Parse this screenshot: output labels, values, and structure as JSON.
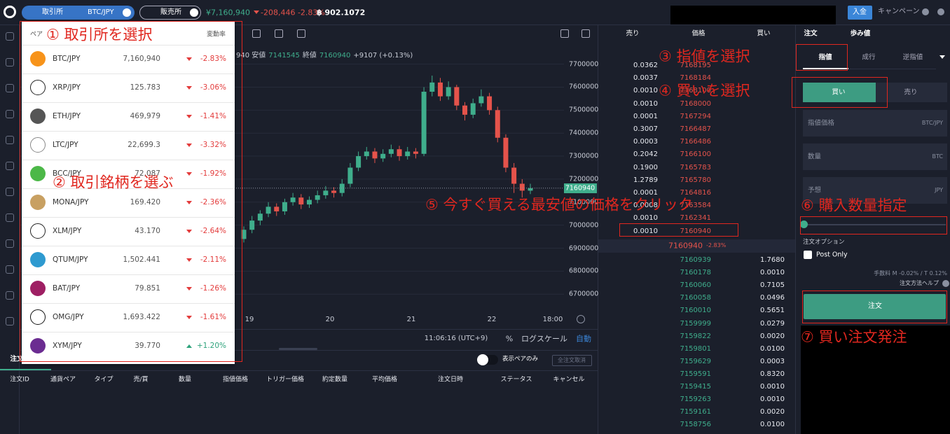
{
  "header": {
    "exchange_tab": "取引所",
    "pair": "BTC/JPY",
    "sales_tab": "販売所",
    "price": "¥7,160,940",
    "change": "-208,446 -2.83%",
    "balance": "฿ 902.1072",
    "deposit": "入金",
    "campaign": "キャンペーン"
  },
  "pair_menu": {
    "columns": [
      "ペア",
      "変動率"
    ],
    "rows": [
      {
        "pair": "BTC/JPY",
        "price": "7,160,940",
        "change": "-2.83%"
      },
      {
        "pair": "XRP/JPY",
        "price": "125.783",
        "change": "-3.06%"
      },
      {
        "pair": "ETH/JPY",
        "price": "469,979",
        "change": "-1.41%"
      },
      {
        "pair": "LTC/JPY",
        "price": "22,699.3",
        "change": "-3.32%"
      },
      {
        "pair": "BCC/JPY",
        "price": "72,087",
        "change": "-1.92%"
      },
      {
        "pair": "MONA/JPY",
        "price": "169.420",
        "change": "-2.36%"
      },
      {
        "pair": "XLM/JPY",
        "price": "43.170",
        "change": "-2.64%"
      },
      {
        "pair": "QTUM/JPY",
        "price": "1,502.441",
        "change": "-2.11%"
      },
      {
        "pair": "BAT/JPY",
        "price": "79.851",
        "change": "-1.26%"
      },
      {
        "pair": "OMG/JPY",
        "price": "1,693.422",
        "change": "-1.61%"
      },
      {
        "pair": "XYM/JPY",
        "price": "39.770",
        "change": "+1.20%"
      }
    ]
  },
  "annotations": [
    "① 取引所を選択",
    "② 取引銘柄を選ぶ",
    "③ 指値を選択",
    "④ 買いを選択",
    "⑤ 今すぐ買える最安値の価格をクリック",
    "⑥ 購入数量指定",
    "⑦ 買い注文発注"
  ],
  "chart": {
    "type": "candlestick",
    "info": [
      "940 安値",
      "7141545",
      "終値",
      "7160940",
      "+9107 (+0.13%)"
    ],
    "ylim": [
      6640000,
      7790000
    ],
    "yticks": [
      6700000,
      6800000,
      6900000,
      7000000,
      7100000,
      7200000,
      7300000,
      7400000,
      7500000,
      7600000,
      7700000
    ],
    "last_price": 7160940,
    "x_labels": [
      "19",
      "20",
      "21",
      "22",
      "18:00"
    ],
    "time": "11:06:16 (UTC+9)",
    "percent": "%",
    "log_scale": "ログスケール",
    "auto": "自動",
    "candles": [
      {
        "o": 6940000,
        "h": 6995000,
        "l": 6925000,
        "c": 6980000
      },
      {
        "o": 6980000,
        "h": 7040000,
        "l": 6965000,
        "c": 7020000
      },
      {
        "o": 7020000,
        "h": 7065000,
        "l": 7000000,
        "c": 7050000
      },
      {
        "o": 7050000,
        "h": 7100000,
        "l": 7035000,
        "c": 7080000
      },
      {
        "o": 7080000,
        "h": 7095000,
        "l": 7040000,
        "c": 7060000
      },
      {
        "o": 7060000,
        "h": 7115000,
        "l": 7045000,
        "c": 7100000
      },
      {
        "o": 7100000,
        "h": 7140000,
        "l": 7085000,
        "c": 7120000
      },
      {
        "o": 7120000,
        "h": 7135000,
        "l": 7070000,
        "c": 7090000
      },
      {
        "o": 7090000,
        "h": 7125000,
        "l": 7075000,
        "c": 7110000
      },
      {
        "o": 7110000,
        "h": 7150000,
        "l": 7095000,
        "c": 7130000
      },
      {
        "o": 7130000,
        "h": 7170000,
        "l": 7115000,
        "c": 7150000
      },
      {
        "o": 7150000,
        "h": 7165000,
        "l": 7120000,
        "c": 7140000
      },
      {
        "o": 7140000,
        "h": 7200000,
        "l": 7125000,
        "c": 7180000
      },
      {
        "o": 7180000,
        "h": 7270000,
        "l": 7165000,
        "c": 7250000
      },
      {
        "o": 7250000,
        "h": 7320000,
        "l": 7235000,
        "c": 7300000
      },
      {
        "o": 7300000,
        "h": 7340000,
        "l": 7285000,
        "c": 7320000
      },
      {
        "o": 7320000,
        "h": 7335000,
        "l": 7270000,
        "c": 7290000
      },
      {
        "o": 7290000,
        "h": 7330000,
        "l": 7275000,
        "c": 7310000
      },
      {
        "o": 7310000,
        "h": 7350000,
        "l": 7295000,
        "c": 7330000
      },
      {
        "o": 7330000,
        "h": 7345000,
        "l": 7280000,
        "c": 7300000
      },
      {
        "o": 7300000,
        "h": 7340000,
        "l": 7285000,
        "c": 7320000
      },
      {
        "o": 7320000,
        "h": 7335000,
        "l": 7290000,
        "c": 7310000
      },
      {
        "o": 7310000,
        "h": 7600000,
        "l": 7300000,
        "c": 7580000
      },
      {
        "o": 7580000,
        "h": 7650000,
        "l": 7560000,
        "c": 7620000
      },
      {
        "o": 7620000,
        "h": 7640000,
        "l": 7540000,
        "c": 7560000
      },
      {
        "o": 7560000,
        "h": 7625000,
        "l": 7545000,
        "c": 7600000
      },
      {
        "o": 7600000,
        "h": 7610000,
        "l": 7500000,
        "c": 7520000
      },
      {
        "o": 7520000,
        "h": 7535000,
        "l": 7455000,
        "c": 7480000
      },
      {
        "o": 7480000,
        "h": 7550000,
        "l": 7465000,
        "c": 7530000
      },
      {
        "o": 7530000,
        "h": 7590000,
        "l": 7515000,
        "c": 7560000
      },
      {
        "o": 7560000,
        "h": 7575000,
        "l": 7480000,
        "c": 7500000
      },
      {
        "o": 7500000,
        "h": 7515000,
        "l": 7360000,
        "c": 7380000
      },
      {
        "o": 7380000,
        "h": 7395000,
        "l": 7230000,
        "c": 7250000
      },
      {
        "o": 7250000,
        "h": 7270000,
        "l": 7140000,
        "c": 7180000
      },
      {
        "o": 7180000,
        "h": 7200000,
        "l": 7120000,
        "c": 7150000
      },
      {
        "o": 7150000,
        "h": 7180000,
        "l": 7135000,
        "c": 7160940
      }
    ]
  },
  "order_book": {
    "columns": [
      "売り",
      "価格",
      "買い"
    ],
    "asks": [
      [
        "0.0362",
        "7168195"
      ],
      [
        "0.0037",
        "7168184"
      ],
      [
        "0.0010",
        "7168100"
      ],
      [
        "0.0010",
        "7168000"
      ],
      [
        "0.0001",
        "7167294"
      ],
      [
        "0.3007",
        "7166487"
      ],
      [
        "0.0003",
        "7166486"
      ],
      [
        "0.2042",
        "7166100"
      ],
      [
        "0.1900",
        "7165783"
      ],
      [
        "1.2789",
        "7165780"
      ],
      [
        "0.0001",
        "7164816"
      ],
      [
        "0.0008",
        "7163584"
      ],
      [
        "0.0010",
        "7162341"
      ],
      [
        "0.0010",
        "7160940"
      ]
    ],
    "mid_price": "7160940",
    "mid_change": "-2.83%",
    "bids": [
      [
        "7160939",
        "1.7680"
      ],
      [
        "7160178",
        "0.0010"
      ],
      [
        "7160060",
        "0.7105"
      ],
      [
        "7160058",
        "0.0496"
      ],
      [
        "7160010",
        "0.5651"
      ],
      [
        "7159999",
        "0.0279"
      ],
      [
        "7159822",
        "0.0020"
      ],
      [
        "7159801",
        "0.0100"
      ],
      [
        "7159629",
        "0.0003"
      ],
      [
        "7159591",
        "0.8320"
      ],
      [
        "7159415",
        "0.0010"
      ],
      [
        "7159263",
        "0.0010"
      ],
      [
        "7159161",
        "0.0020"
      ],
      [
        "7158756",
        "0.0100"
      ]
    ]
  },
  "order_form": {
    "tabs": [
      "注文",
      "歩み値"
    ],
    "types": [
      "指値",
      "成行",
      "逆指値"
    ],
    "sides": [
      "買い",
      "売り"
    ],
    "fields": [
      [
        "指値価格",
        "BTC/JPY"
      ],
      [
        "数量",
        "BTC"
      ],
      [
        "予想",
        "JPY"
      ]
    ],
    "options": "注文オプション",
    "post_only": "Post Only",
    "fee": "手数料 M -0.02% / T 0.12%",
    "help": "注文方法ヘルプ",
    "submit": "注文"
  },
  "orders": {
    "tab": "注文",
    "only_pair": "表示ペアのみ",
    "cancel_all": "全注文取消",
    "columns": [
      "注文ID",
      "通貨ペア",
      "タイプ",
      "売/買",
      "数量",
      "指値価格",
      "トリガー価格",
      "約定数量",
      "平均価格",
      "注文日時",
      "ステータス",
      "キャンセル"
    ]
  }
}
